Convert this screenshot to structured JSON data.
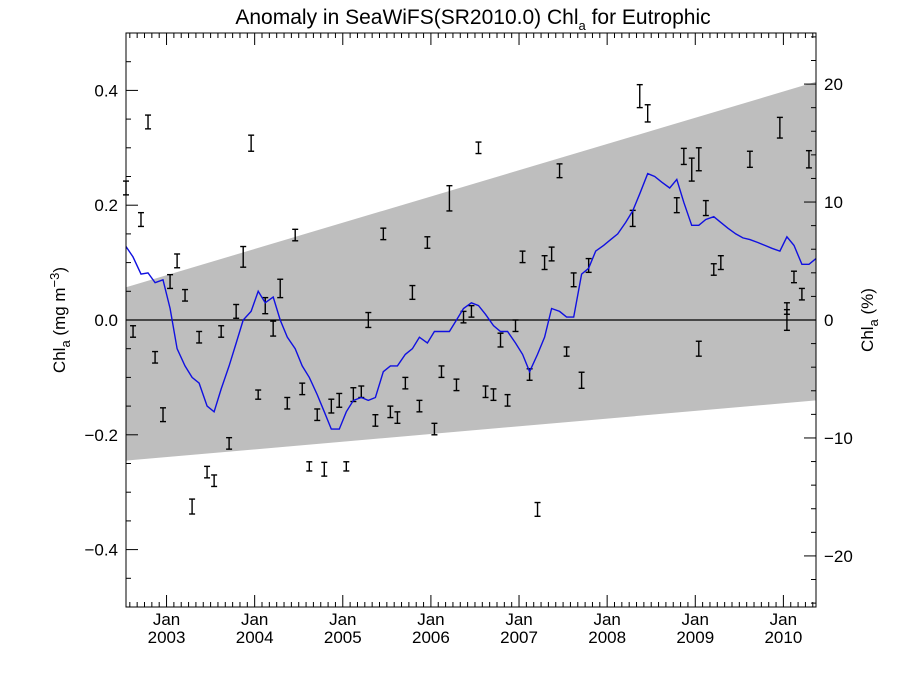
{
  "chart_data": {
    "type": "line",
    "title": {
      "prefix": "Anomaly in SeaWiFS(SR2010.0) Chl",
      "subscript": "a",
      "suffix": " for Eutrophic"
    },
    "ylabel_left": {
      "base": "Chl",
      "subscript": "a",
      "unit_open": " (mg m",
      "superscript": "−3",
      "unit_close": ")"
    },
    "ylabel_right": {
      "base": "Chl",
      "subscript": "a",
      "unit": " (%)"
    },
    "colors": {
      "line": "#1010e0",
      "band": "#bebebe",
      "errorbar": "#000000",
      "zero_line": "#000000"
    },
    "x_range": [
      2002.54,
      2010.37
    ],
    "y_left_range": [
      -0.5,
      0.5
    ],
    "y_right_range": [
      -24.33,
      24.33
    ],
    "x_ticks": [
      {
        "month": "Jan",
        "year": "2003",
        "x": 2003.0
      },
      {
        "month": "Jan",
        "year": "2004",
        "x": 2004.0
      },
      {
        "month": "Jan",
        "year": "2005",
        "x": 2005.0
      },
      {
        "month": "Jan",
        "year": "2006",
        "x": 2006.0
      },
      {
        "month": "Jan",
        "year": "2007",
        "x": 2007.0
      },
      {
        "month": "Jan",
        "year": "2008",
        "x": 2008.0
      },
      {
        "month": "Jan",
        "year": "2009",
        "x": 2009.0
      },
      {
        "month": "Jan",
        "year": "2010",
        "x": 2010.0
      }
    ],
    "y_left_ticks": [
      {
        "label": "0.4",
        "v": 0.4
      },
      {
        "label": "0.2",
        "v": 0.2
      },
      {
        "label": "0.0",
        "v": 0.0
      },
      {
        "label": "−0.2",
        "v": -0.2
      },
      {
        "label": "−0.4",
        "v": -0.4
      }
    ],
    "y_right_ticks": [
      {
        "label": "20",
        "v": 20
      },
      {
        "label": "10",
        "v": 10
      },
      {
        "label": "0",
        "v": 0
      },
      {
        "label": "−10",
        "v": -10
      },
      {
        "label": "−20",
        "v": -20
      }
    ],
    "band": {
      "x": [
        2002.54,
        2010.37
      ],
      "upper": [
        0.057,
        0.415
      ],
      "lower": [
        -0.245,
        -0.14
      ]
    },
    "series": [
      {
        "kind": "line",
        "x": [
          2002.54,
          2002.62,
          2002.71,
          2002.79,
          2002.87,
          2002.96,
          2003.04,
          2003.12,
          2003.21,
          2003.29,
          2003.37,
          2003.46,
          2003.54,
          2003.62,
          2003.71,
          2003.79,
          2003.87,
          2003.96,
          2004.04,
          2004.12,
          2004.21,
          2004.29,
          2004.37,
          2004.46,
          2004.54,
          2004.62,
          2004.71,
          2004.79,
          2004.87,
          2004.96,
          2005.04,
          2005.12,
          2005.21,
          2005.29,
          2005.37,
          2005.46,
          2005.54,
          2005.62,
          2005.71,
          2005.79,
          2005.87,
          2005.96,
          2006.04,
          2006.12,
          2006.21,
          2006.29,
          2006.37,
          2006.46,
          2006.54,
          2006.62,
          2006.71,
          2006.79,
          2006.87,
          2006.96,
          2007.04,
          2007.12,
          2007.21,
          2007.29,
          2007.37,
          2007.46,
          2007.54,
          2007.62,
          2007.71,
          2007.79,
          2007.87,
          2007.96,
          2008.04,
          2008.12,
          2008.21,
          2008.29,
          2008.37,
          2008.46,
          2008.54,
          2008.62,
          2008.71,
          2008.79,
          2008.87,
          2008.96,
          2009.04,
          2009.12,
          2009.21,
          2009.29,
          2009.37,
          2009.46,
          2009.54,
          2009.62,
          2009.71,
          2009.79,
          2009.87,
          2009.96,
          2010.04,
          2010.12,
          2010.21,
          2010.29,
          2010.37
        ],
        "y": [
          0.128,
          0.11,
          0.08,
          0.082,
          0.065,
          0.07,
          0.02,
          -0.05,
          -0.08,
          -0.1,
          -0.11,
          -0.15,
          -0.16,
          -0.12,
          -0.08,
          -0.04,
          0.0,
          0.015,
          0.05,
          0.03,
          0.04,
          0.0,
          -0.03,
          -0.05,
          -0.08,
          -0.1,
          -0.13,
          -0.16,
          -0.19,
          -0.19,
          -0.16,
          -0.14,
          -0.135,
          -0.14,
          -0.135,
          -0.09,
          -0.08,
          -0.08,
          -0.06,
          -0.05,
          -0.03,
          -0.04,
          -0.02,
          -0.02,
          -0.02,
          0.0,
          0.02,
          0.03,
          0.025,
          0.01,
          -0.01,
          -0.02,
          -0.02,
          -0.04,
          -0.06,
          -0.09,
          -0.06,
          -0.03,
          0.02,
          0.015,
          0.005,
          0.005,
          0.08,
          0.09,
          0.12,
          0.13,
          0.14,
          0.15,
          0.17,
          0.19,
          0.22,
          0.255,
          0.25,
          0.24,
          0.23,
          0.245,
          0.205,
          0.165,
          0.165,
          0.175,
          0.18,
          0.17,
          0.16,
          0.15,
          0.143,
          0.14,
          0.135,
          0.13,
          0.125,
          0.12,
          0.145,
          0.13,
          0.097,
          0.097,
          0.107
        ]
      },
      {
        "kind": "errorbar",
        "points": [
          {
            "x": 2002.54,
            "y": 0.23,
            "e": 0.012
          },
          {
            "x": 2002.62,
            "y": -0.02,
            "e": 0.01
          },
          {
            "x": 2002.71,
            "y": 0.175,
            "e": 0.012
          },
          {
            "x": 2002.79,
            "y": 0.345,
            "e": 0.012
          },
          {
            "x": 2002.87,
            "y": -0.065,
            "e": 0.01
          },
          {
            "x": 2002.96,
            "y": -0.165,
            "e": 0.012
          },
          {
            "x": 2003.04,
            "y": 0.067,
            "e": 0.012
          },
          {
            "x": 2003.12,
            "y": 0.103,
            "e": 0.012
          },
          {
            "x": 2003.21,
            "y": 0.043,
            "e": 0.01
          },
          {
            "x": 2003.29,
            "y": -0.325,
            "e": 0.013
          },
          {
            "x": 2003.37,
            "y": -0.03,
            "e": 0.01
          },
          {
            "x": 2003.46,
            "y": -0.265,
            "e": 0.01
          },
          {
            "x": 2003.54,
            "y": -0.28,
            "e": 0.01
          },
          {
            "x": 2003.62,
            "y": -0.02,
            "e": 0.01
          },
          {
            "x": 2003.71,
            "y": -0.215,
            "e": 0.01
          },
          {
            "x": 2003.79,
            "y": 0.015,
            "e": 0.012
          },
          {
            "x": 2003.87,
            "y": 0.11,
            "e": 0.018
          },
          {
            "x": 2003.96,
            "y": 0.308,
            "e": 0.014
          },
          {
            "x": 2004.04,
            "y": -0.13,
            "e": 0.008
          },
          {
            "x": 2004.12,
            "y": 0.025,
            "e": 0.014
          },
          {
            "x": 2004.21,
            "y": -0.015,
            "e": 0.013
          },
          {
            "x": 2004.29,
            "y": 0.055,
            "e": 0.016
          },
          {
            "x": 2004.37,
            "y": -0.145,
            "e": 0.01
          },
          {
            "x": 2004.46,
            "y": 0.148,
            "e": 0.01
          },
          {
            "x": 2004.54,
            "y": -0.12,
            "e": 0.01
          },
          {
            "x": 2004.62,
            "y": -0.255,
            "e": 0.008
          },
          {
            "x": 2004.71,
            "y": -0.165,
            "e": 0.01
          },
          {
            "x": 2004.79,
            "y": -0.26,
            "e": 0.012
          },
          {
            "x": 2004.87,
            "y": -0.15,
            "e": 0.012
          },
          {
            "x": 2004.96,
            "y": -0.14,
            "e": 0.012
          },
          {
            "x": 2005.04,
            "y": -0.255,
            "e": 0.008
          },
          {
            "x": 2005.12,
            "y": -0.13,
            "e": 0.012
          },
          {
            "x": 2005.21,
            "y": -0.125,
            "e": 0.01
          },
          {
            "x": 2005.29,
            "y": 0.0,
            "e": 0.013
          },
          {
            "x": 2005.37,
            "y": -0.175,
            "e": 0.01
          },
          {
            "x": 2005.46,
            "y": 0.15,
            "e": 0.01
          },
          {
            "x": 2005.54,
            "y": -0.16,
            "e": 0.01
          },
          {
            "x": 2005.62,
            "y": -0.17,
            "e": 0.01
          },
          {
            "x": 2005.71,
            "y": -0.11,
            "e": 0.01
          },
          {
            "x": 2005.79,
            "y": 0.048,
            "e": 0.012
          },
          {
            "x": 2005.87,
            "y": -0.15,
            "e": 0.01
          },
          {
            "x": 2005.96,
            "y": 0.135,
            "e": 0.01
          },
          {
            "x": 2006.04,
            "y": -0.19,
            "e": 0.01
          },
          {
            "x": 2006.12,
            "y": -0.09,
            "e": 0.01
          },
          {
            "x": 2006.21,
            "y": 0.212,
            "e": 0.022
          },
          {
            "x": 2006.29,
            "y": -0.113,
            "e": 0.01
          },
          {
            "x": 2006.37,
            "y": 0.005,
            "e": 0.01
          },
          {
            "x": 2006.46,
            "y": 0.015,
            "e": 0.01
          },
          {
            "x": 2006.54,
            "y": 0.3,
            "e": 0.01
          },
          {
            "x": 2006.62,
            "y": -0.125,
            "e": 0.01
          },
          {
            "x": 2006.71,
            "y": -0.13,
            "e": 0.01
          },
          {
            "x": 2006.79,
            "y": -0.035,
            "e": 0.012
          },
          {
            "x": 2006.87,
            "y": -0.14,
            "e": 0.01
          },
          {
            "x": 2006.96,
            "y": -0.01,
            "e": 0.01
          },
          {
            "x": 2007.04,
            "y": 0.11,
            "e": 0.01
          },
          {
            "x": 2007.12,
            "y": -0.095,
            "e": 0.01
          },
          {
            "x": 2007.21,
            "y": -0.33,
            "e": 0.012
          },
          {
            "x": 2007.29,
            "y": 0.1,
            "e": 0.012
          },
          {
            "x": 2007.37,
            "y": 0.115,
            "e": 0.012
          },
          {
            "x": 2007.46,
            "y": 0.26,
            "e": 0.012
          },
          {
            "x": 2007.54,
            "y": -0.055,
            "e": 0.008
          },
          {
            "x": 2007.62,
            "y": 0.07,
            "e": 0.012
          },
          {
            "x": 2007.71,
            "y": -0.105,
            "e": 0.014
          },
          {
            "x": 2007.79,
            "y": 0.095,
            "e": 0.012
          },
          {
            "x": 2008.29,
            "y": 0.177,
            "e": 0.014
          },
          {
            "x": 2008.37,
            "y": 0.39,
            "e": 0.02
          },
          {
            "x": 2008.46,
            "y": 0.36,
            "e": 0.015
          },
          {
            "x": 2008.79,
            "y": 0.2,
            "e": 0.013
          },
          {
            "x": 2008.87,
            "y": 0.285,
            "e": 0.014
          },
          {
            "x": 2008.96,
            "y": 0.262,
            "e": 0.02
          },
          {
            "x": 2009.04,
            "y": 0.28,
            "e": 0.02
          },
          {
            "x": 2009.04,
            "y": -0.05,
            "e": 0.013
          },
          {
            "x": 2009.12,
            "y": 0.195,
            "e": 0.013
          },
          {
            "x": 2009.21,
            "y": 0.088,
            "e": 0.01
          },
          {
            "x": 2009.29,
            "y": 0.1,
            "e": 0.012
          },
          {
            "x": 2009.62,
            "y": 0.28,
            "e": 0.014
          },
          {
            "x": 2009.96,
            "y": 0.335,
            "e": 0.018
          },
          {
            "x": 2010.04,
            "y": 0.0,
            "e": 0.018
          },
          {
            "x": 2010.04,
            "y": 0.02,
            "e": 0.01
          },
          {
            "x": 2010.12,
            "y": 0.075,
            "e": 0.01
          },
          {
            "x": 2010.21,
            "y": 0.045,
            "e": 0.01
          },
          {
            "x": 2010.29,
            "y": 0.28,
            "e": 0.015
          }
        ]
      }
    ],
    "grid": false,
    "legend": "none"
  }
}
